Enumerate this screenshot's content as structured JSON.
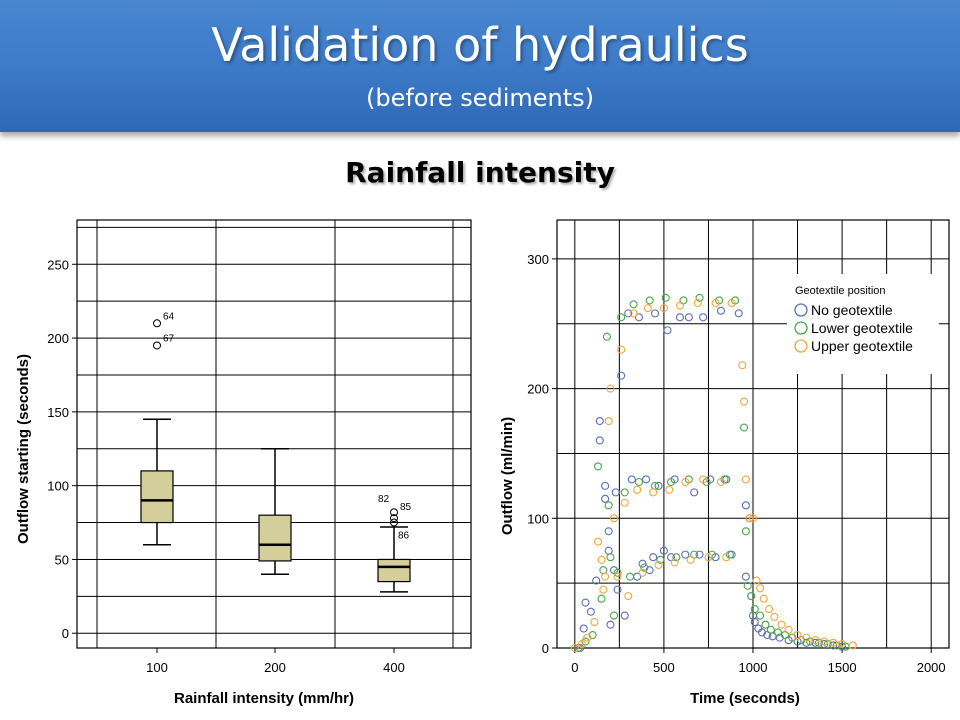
{
  "header": {
    "title": "Validation of hydraulics",
    "subtitle": "(before sediments)"
  },
  "section_title": "Rainfall intensity",
  "chart_data": [
    {
      "type": "box",
      "xlabel": "Rainfall intensity (mm/hr)",
      "ylabel": "Outflow starting (seconds)",
      "ylim": [
        -10,
        280
      ],
      "yticks": [
        0,
        50,
        100,
        150,
        200,
        250
      ],
      "categories": [
        "100",
        "200",
        "400"
      ],
      "boxes": [
        {
          "category": "100",
          "min": 60,
          "q1": 75,
          "median": 90,
          "q3": 110,
          "max": 145,
          "outliers": [
            {
              "value": 210,
              "label": "64"
            },
            {
              "value": 195,
              "label": "67"
            }
          ]
        },
        {
          "category": "200",
          "min": 40,
          "q1": 49,
          "median": 60,
          "q3": 80,
          "max": 125,
          "outliers": []
        },
        {
          "category": "400",
          "min": 28,
          "q1": 35,
          "median": 45,
          "q3": 50,
          "max": 72,
          "outliers": [
            {
              "value": 82,
              "label": "82"
            },
            {
              "value": 78,
              "label": "85"
            },
            {
              "value": 75,
              "label": "86"
            }
          ]
        }
      ],
      "box_color": "#d4cf9a",
      "grid": true
    },
    {
      "type": "scatter",
      "xlabel": "Time (seconds)",
      "ylabel": "Outflow (ml/min)",
      "xlim": [
        -100,
        2100
      ],
      "ylim": [
        0,
        330
      ],
      "xticks": [
        0,
        500,
        1000,
        1500,
        2000
      ],
      "yticks": [
        0,
        100,
        200,
        300
      ],
      "grid": true,
      "legend": {
        "title": "Geotextile position",
        "position": "top-right",
        "entries": [
          "No geotextile",
          "Lower geotextile",
          "Upper geotextile"
        ]
      },
      "series": [
        {
          "name": "No geotextile",
          "color": "#5b6fb5",
          "points": [
            [
              30,
              0
            ],
            [
              50,
              15
            ],
            [
              60,
              35
            ],
            [
              90,
              28
            ],
            [
              120,
              52
            ],
            [
              140,
              160
            ],
            [
              140,
              175
            ],
            [
              170,
              115
            ],
            [
              170,
              125
            ],
            [
              190,
              90
            ],
            [
              190,
              75
            ],
            [
              200,
              18
            ],
            [
              220,
              60
            ],
            [
              230,
              120
            ],
            [
              240,
              45
            ],
            [
              260,
              210
            ],
            [
              280,
              25
            ],
            [
              300,
              258
            ],
            [
              320,
              130
            ],
            [
              350,
              55
            ],
            [
              360,
              255
            ],
            [
              380,
              65
            ],
            [
              400,
              130
            ],
            [
              420,
              60
            ],
            [
              440,
              70
            ],
            [
              450,
              258
            ],
            [
              470,
              125
            ],
            [
              500,
              75
            ],
            [
              520,
              245
            ],
            [
              540,
              70
            ],
            [
              560,
              130
            ],
            [
              590,
              255
            ],
            [
              620,
              72
            ],
            [
              640,
              255
            ],
            [
              670,
              120
            ],
            [
              700,
              72
            ],
            [
              720,
              255
            ],
            [
              760,
              130
            ],
            [
              790,
              70
            ],
            [
              820,
              260
            ],
            [
              850,
              130
            ],
            [
              880,
              72
            ],
            [
              920,
              258
            ],
            [
              960,
              110
            ],
            [
              960,
              55
            ],
            [
              980,
              100
            ],
            [
              990,
              40
            ],
            [
              1000,
              25
            ],
            [
              1010,
              20
            ],
            [
              1030,
              15
            ],
            [
              1050,
              12
            ],
            [
              1080,
              10
            ],
            [
              1110,
              9
            ],
            [
              1150,
              8
            ],
            [
              1200,
              6
            ],
            [
              1250,
              5
            ],
            [
              1300,
              4
            ],
            [
              1350,
              4
            ],
            [
              1400,
              3
            ],
            [
              1450,
              2
            ],
            [
              1500,
              1
            ]
          ]
        },
        {
          "name": "Lower geotextile",
          "color": "#4aa64e",
          "points": [
            [
              20,
              0
            ],
            [
              60,
              5
            ],
            [
              100,
              10
            ],
            [
              130,
              140
            ],
            [
              150,
              38
            ],
            [
              160,
              60
            ],
            [
              180,
              240
            ],
            [
              190,
              110
            ],
            [
              200,
              70
            ],
            [
              220,
              25
            ],
            [
              240,
              58
            ],
            [
              260,
              255
            ],
            [
              280,
              120
            ],
            [
              310,
              55
            ],
            [
              330,
              265
            ],
            [
              360,
              128
            ],
            [
              390,
              62
            ],
            [
              420,
              268
            ],
            [
              450,
              125
            ],
            [
              480,
              68
            ],
            [
              510,
              270
            ],
            [
              540,
              128
            ],
            [
              570,
              70
            ],
            [
              610,
              268
            ],
            [
              640,
              130
            ],
            [
              670,
              72
            ],
            [
              700,
              270
            ],
            [
              740,
              128
            ],
            [
              770,
              72
            ],
            [
              810,
              268
            ],
            [
              840,
              130
            ],
            [
              870,
              72
            ],
            [
              900,
              268
            ],
            [
              950,
              170
            ],
            [
              960,
              90
            ],
            [
              970,
              48
            ],
            [
              990,
              40
            ],
            [
              1010,
              30
            ],
            [
              1040,
              25
            ],
            [
              1070,
              18
            ],
            [
              1100,
              14
            ],
            [
              1140,
              12
            ],
            [
              1180,
              10
            ],
            [
              1220,
              8
            ],
            [
              1270,
              6
            ],
            [
              1320,
              5
            ],
            [
              1370,
              4
            ],
            [
              1420,
              3
            ],
            [
              1470,
              2
            ],
            [
              1520,
              1
            ]
          ]
        },
        {
          "name": "Upper geotextile",
          "color": "#f0a63c",
          "points": [
            [
              0,
              0
            ],
            [
              40,
              3
            ],
            [
              70,
              8
            ],
            [
              110,
              20
            ],
            [
              130,
              82
            ],
            [
              150,
              68
            ],
            [
              160,
              45
            ],
            [
              170,
              55
            ],
            [
              190,
              175
            ],
            [
              200,
              200
            ],
            [
              220,
              100
            ],
            [
              240,
              55
            ],
            [
              260,
              230
            ],
            [
              280,
              112
            ],
            [
              300,
              40
            ],
            [
              330,
              258
            ],
            [
              350,
              122
            ],
            [
              380,
              58
            ],
            [
              410,
              262
            ],
            [
              440,
              120
            ],
            [
              470,
              64
            ],
            [
              500,
              262
            ],
            [
              530,
              122
            ],
            [
              560,
              66
            ],
            [
              590,
              264
            ],
            [
              620,
              128
            ],
            [
              650,
              68
            ],
            [
              690,
              266
            ],
            [
              720,
              130
            ],
            [
              750,
              70
            ],
            [
              790,
              266
            ],
            [
              820,
              128
            ],
            [
              850,
              70
            ],
            [
              880,
              266
            ],
            [
              940,
              218
            ],
            [
              950,
              190
            ],
            [
              960,
              130
            ],
            [
              980,
              100
            ],
            [
              1000,
              100
            ],
            [
              1020,
              52
            ],
            [
              1040,
              46
            ],
            [
              1060,
              38
            ],
            [
              1090,
              30
            ],
            [
              1120,
              24
            ],
            [
              1160,
              18
            ],
            [
              1200,
              14
            ],
            [
              1250,
              10
            ],
            [
              1300,
              8
            ],
            [
              1350,
              6
            ],
            [
              1400,
              5
            ],
            [
              1450,
              4
            ],
            [
              1500,
              3
            ],
            [
              1560,
              2
            ]
          ]
        }
      ]
    }
  ]
}
